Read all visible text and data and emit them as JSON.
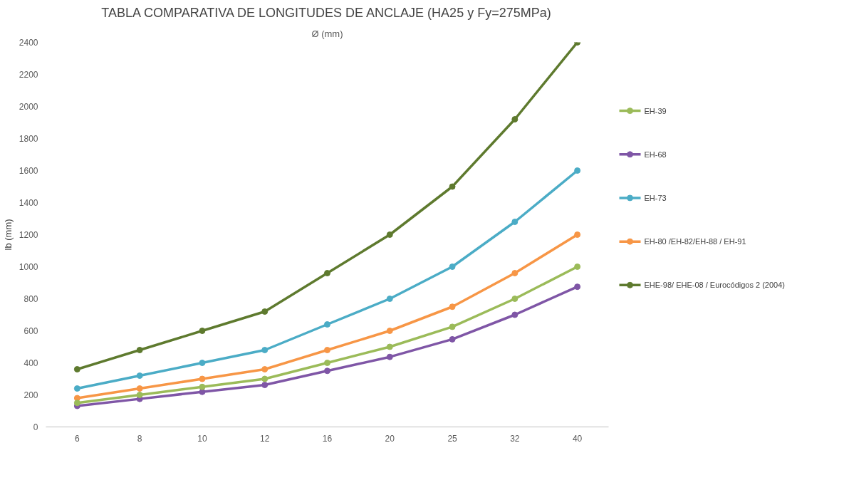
{
  "chart_data": {
    "type": "line",
    "title": "TABLA COMPARATIVA DE LONGITUDES DE ANCLAJE (HA25 y Fy=275MPa)",
    "xlabel": "Ø (mm)",
    "ylabel": "lb (mm)",
    "categories": [
      "6",
      "8",
      "10",
      "12",
      "16",
      "20",
      "25",
      "32",
      "40"
    ],
    "series": [
      {
        "name": "EH-39",
        "color": "#9bbb59",
        "values": [
          150,
          200,
          250,
          300,
          400,
          500,
          625,
          800,
          1000
        ]
      },
      {
        "name": "EH-68",
        "color": "#7f56a6",
        "values": [
          131,
          175,
          219,
          262,
          350,
          437,
          547,
          700,
          875
        ]
      },
      {
        "name": "EH-73",
        "color": "#4bacc6",
        "values": [
          240,
          320,
          400,
          480,
          640,
          800,
          1000,
          1280,
          1600
        ]
      },
      {
        "name": "EH-80 /EH-82/EH-88 / EH-91",
        "color": "#f79646",
        "values": [
          180,
          240,
          300,
          360,
          480,
          600,
          750,
          960,
          1200
        ]
      },
      {
        "name": "EHE-98/ EHE-08 / Eurocódigos 2 (2004)",
        "color": "#5e7a2e",
        "values": [
          360,
          480,
          600,
          720,
          960,
          1200,
          1500,
          1920,
          2400
        ]
      }
    ],
    "ylim": [
      0,
      2400
    ],
    "yticks": [
      0,
      200,
      400,
      600,
      800,
      1000,
      1200,
      1400,
      1600,
      1800,
      2000,
      2200,
      2400
    ],
    "grid": false,
    "legend": "right",
    "marker": "circle",
    "line_style": "solid"
  }
}
